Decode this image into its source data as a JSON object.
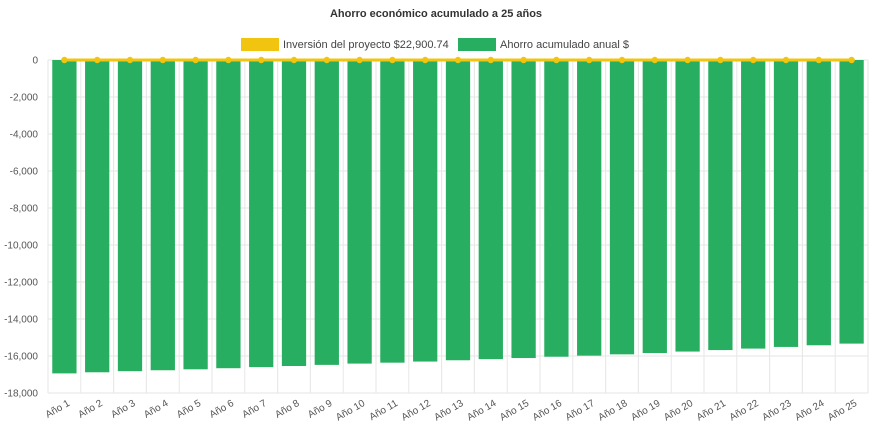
{
  "chart_data": {
    "type": "bar",
    "title": "Ahorro económico acumulado a 25 años",
    "xlabel": "",
    "ylabel": "",
    "ylim": [
      -18000,
      0
    ],
    "yticks": [
      "0",
      "-2,000",
      "-4,000",
      "-6,000",
      "-8,000",
      "-10,000",
      "-12,000",
      "-14,000",
      "-16,000",
      "-18,000"
    ],
    "ytick_values": [
      0,
      -2000,
      -4000,
      -6000,
      -8000,
      -10000,
      -12000,
      -14000,
      -16000,
      -18000
    ],
    "grid": true,
    "legend_position": "top",
    "categories": [
      "Año 1",
      "Año 2",
      "Año 3",
      "Año 4",
      "Año 5",
      "Año 6",
      "Año 7",
      "Año 8",
      "Año 9",
      "Año 10",
      "Año 11",
      "Año 12",
      "Año 13",
      "Año 14",
      "Año 15",
      "Año 16",
      "Año 17",
      "Año 18",
      "Año 19",
      "Año 20",
      "Año 21",
      "Año 22",
      "Año 23",
      "Año 24",
      "Año 25"
    ],
    "series": [
      {
        "name": "Inversión del proyecto $22,900.74",
        "kind": "line",
        "color": "#f1c40f",
        "values": [
          0,
          0,
          0,
          0,
          0,
          0,
          0,
          0,
          0,
          0,
          0,
          0,
          0,
          0,
          0,
          0,
          0,
          0,
          0,
          0,
          0,
          0,
          0,
          0,
          0
        ]
      },
      {
        "name": "Ahorro acumulado anual $",
        "kind": "bar",
        "color": "#27ae60",
        "values": [
          -16940,
          -16880,
          -16820,
          -16770,
          -16720,
          -16660,
          -16600,
          -16540,
          -16480,
          -16410,
          -16360,
          -16300,
          -16230,
          -16170,
          -16110,
          -16040,
          -15980,
          -15910,
          -15840,
          -15760,
          -15680,
          -15600,
          -15510,
          -15420,
          -15330
        ]
      }
    ]
  }
}
